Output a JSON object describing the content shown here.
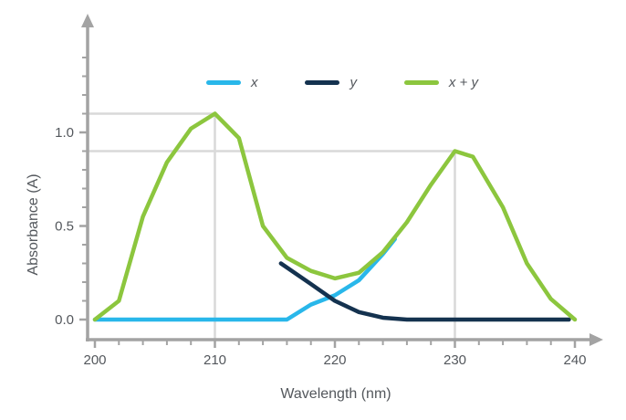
{
  "chart_data": {
    "type": "line",
    "title": "",
    "xlabel": "Wavelength (nm)",
    "ylabel": "Absorbance (A)",
    "xlim": [
      200,
      240
    ],
    "ylim": [
      0,
      1.4
    ],
    "x_ticks": [
      200,
      210,
      220,
      230,
      240
    ],
    "y_ticks": [
      0.0,
      0.5,
      1.0
    ],
    "x_minor_step": 2,
    "y_minor_step": 0.1,
    "grid": false,
    "legend_position": "top-center",
    "series": [
      {
        "name": "x",
        "color": "#29b7ea",
        "points": [
          [
            200,
            0
          ],
          [
            216,
            0
          ],
          [
            218,
            0.08
          ],
          [
            220,
            0.13
          ],
          [
            222,
            0.21
          ],
          [
            224,
            0.35
          ],
          [
            225,
            0.43
          ]
        ]
      },
      {
        "name": "y",
        "color": "#14324f",
        "points": [
          [
            215.5,
            0.3
          ],
          [
            218,
            0.19
          ],
          [
            220,
            0.1
          ],
          [
            222,
            0.04
          ],
          [
            224,
            0.01
          ],
          [
            226,
            0
          ],
          [
            239.5,
            0
          ]
        ]
      },
      {
        "name": "x + y",
        "color": "#8cc63e",
        "points": [
          [
            200,
            0
          ],
          [
            202,
            0.1
          ],
          [
            204,
            0.55
          ],
          [
            206,
            0.84
          ],
          [
            208,
            1.02
          ],
          [
            210,
            1.1
          ],
          [
            212,
            0.97
          ],
          [
            214,
            0.5
          ],
          [
            216,
            0.33
          ],
          [
            218,
            0.26
          ],
          [
            220,
            0.22
          ],
          [
            222,
            0.25
          ],
          [
            224,
            0.36
          ],
          [
            226,
            0.52
          ],
          [
            228,
            0.72
          ],
          [
            230,
            0.9
          ],
          [
            231.5,
            0.87
          ],
          [
            234,
            0.6
          ],
          [
            236,
            0.3
          ],
          [
            238,
            0.11
          ],
          [
            240,
            0
          ]
        ]
      }
    ],
    "reference_lines": [
      {
        "x": 210,
        "y": 1.1
      },
      {
        "x": 230,
        "y": 0.9
      }
    ],
    "colors": {
      "axis": "#a3a3a3",
      "reference": "#d9d9d9",
      "text": "#53575c"
    }
  },
  "legend": {
    "items": [
      {
        "label": "x",
        "color": "#29b7ea"
      },
      {
        "label": "y",
        "color": "#14324f"
      },
      {
        "label": "x + y",
        "color": "#8cc63e"
      }
    ]
  },
  "axes": {
    "x_label": "Wavelength (nm)",
    "y_label": "Absorbance (A)",
    "x_tick_labels": [
      "200",
      "210",
      "220",
      "230",
      "240"
    ],
    "y_tick_labels": [
      "0.0",
      "0.5",
      "1.0"
    ]
  }
}
